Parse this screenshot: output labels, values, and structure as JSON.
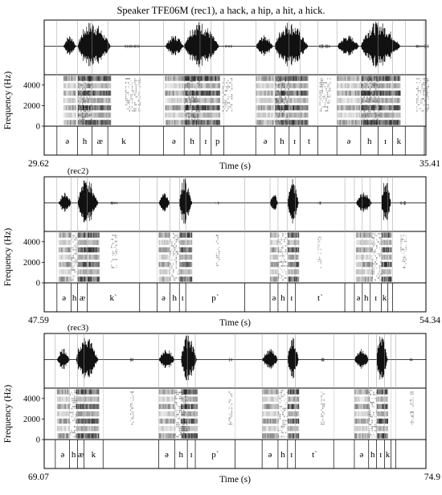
{
  "title": "Speaker TFE06M (rec1), a hack, a hip, a hit, a hick.",
  "chart_data": [
    {
      "type": "spectrogram",
      "label": "",
      "xlabel": "Time (s)",
      "ylabel": "Frequency (Hz)",
      "xlim": [
        29.62,
        35.41
      ],
      "x_tick_labels": [
        "29.62",
        "35.41"
      ],
      "y_ticks": [
        0,
        2000,
        4000
      ],
      "segments": [
        "ə",
        "h",
        "æ",
        "k",
        "ə",
        "h",
        "ɪ",
        "p",
        "ə",
        "h",
        "ɪ",
        "t",
        "ə",
        "h",
        "ɪ",
        "k"
      ],
      "boundaries": [
        0.04,
        0.105,
        0.15,
        0.2,
        0.3,
        0.375,
        0.44,
        0.49,
        0.525,
        0.565,
        0.665,
        0.725,
        0.77,
        0.805,
        0.86,
        0.92,
        0.995,
        1.05,
        1.095,
        1.135,
        1.195
      ],
      "voiced": [
        [
          0.06,
          0.1
        ],
        [
          0.105,
          0.21
        ],
        [
          0.38,
          0.44
        ],
        [
          0.44,
          0.55
        ],
        [
          0.665,
          0.72
        ],
        [
          0.725,
          0.83
        ],
        [
          0.92,
          0.99
        ],
        [
          0.995,
          1.12
        ]
      ],
      "frication": [
        [
          0.105,
          0.15
        ],
        [
          0.44,
          0.49
        ],
        [
          0.725,
          0.77
        ],
        [
          0.995,
          1.05
        ]
      ],
      "bursts": [
        [
          0.255,
          0.3
        ],
        [
          0.56,
          0.59
        ],
        [
          0.865,
          0.9
        ],
        [
          1.17,
          1.21
        ]
      ]
    },
    {
      "type": "spectrogram",
      "label": "(rec2)",
      "xlabel": "Time (s)",
      "ylabel": "Frequency (Hz)",
      "xlim": [
        47.59,
        54.34
      ],
      "x_tick_labels": [
        "47.59",
        "54.34"
      ],
      "y_ticks": [
        0,
        2000,
        4000
      ],
      "segments": [
        "ə",
        "h",
        "æ",
        "k`",
        "ə",
        "h",
        "ɪ",
        "p`",
        "ə",
        "h",
        "ɪ",
        "t`",
        "ə",
        "h",
        "ɪ",
        "k"
      ],
      "boundaries": [
        0.04,
        0.085,
        0.105,
        0.135,
        0.3,
        0.355,
        0.395,
        0.425,
        0.445,
        0.63,
        0.71,
        0.735,
        0.765,
        0.79,
        0.945,
        0.975,
        1.0,
        1.025,
        1.06,
        1.08,
        1.095
      ],
      "voiced": [
        [
          0.045,
          0.085
        ],
        [
          0.105,
          0.17
        ],
        [
          0.36,
          0.395
        ],
        [
          0.425,
          0.465
        ],
        [
          0.71,
          0.735
        ],
        [
          0.765,
          0.8
        ],
        [
          0.98,
          1.03
        ],
        [
          1.06,
          1.09
        ]
      ],
      "frication": [
        [
          0.085,
          0.105
        ],
        [
          0.395,
          0.425
        ],
        [
          0.735,
          0.765
        ],
        [
          1.03,
          1.06
        ]
      ],
      "bursts": [
        [
          0.21,
          0.23
        ],
        [
          0.54,
          0.55
        ],
        [
          0.86,
          0.87
        ],
        [
          1.12,
          1.14
        ]
      ]
    },
    {
      "type": "spectrogram",
      "label": "(rec3)",
      "xlabel": "Time (s)",
      "ylabel": "Frequency (Hz)",
      "xlim": [
        69.07,
        74.9
      ],
      "x_tick_labels": [
        "69.07",
        "74.9"
      ],
      "y_ticks": [
        0,
        2000,
        4000
      ],
      "segments": [
        "ə",
        "h",
        "æ",
        "k",
        "ə",
        "h",
        "ɪ",
        "p`",
        "ə",
        "h",
        "ɪ",
        "t`",
        "ə",
        "h",
        "ɪ",
        "k"
      ],
      "boundaries": [
        0.035,
        0.08,
        0.105,
        0.125,
        0.185,
        0.36,
        0.41,
        0.45,
        0.475,
        0.6,
        0.685,
        0.735,
        0.765,
        0.79,
        0.91,
        0.975,
        1.02,
        1.045,
        1.07,
        1.09,
        1.105
      ],
      "voiced": [
        [
          0.04,
          0.08
        ],
        [
          0.1,
          0.17
        ],
        [
          0.36,
          0.41
        ],
        [
          0.43,
          0.48
        ],
        [
          0.685,
          0.735
        ],
        [
          0.765,
          0.8
        ],
        [
          0.975,
          1.02
        ],
        [
          1.045,
          1.08
        ]
      ],
      "frication": [
        [
          0.08,
          0.1
        ],
        [
          0.41,
          0.45
        ],
        [
          0.735,
          0.765
        ],
        [
          1.02,
          1.045
        ]
      ],
      "bursts": [
        [
          0.27,
          0.28
        ],
        [
          0.58,
          0.59
        ],
        [
          0.87,
          0.88
        ],
        [
          1.15,
          1.16
        ]
      ]
    }
  ]
}
